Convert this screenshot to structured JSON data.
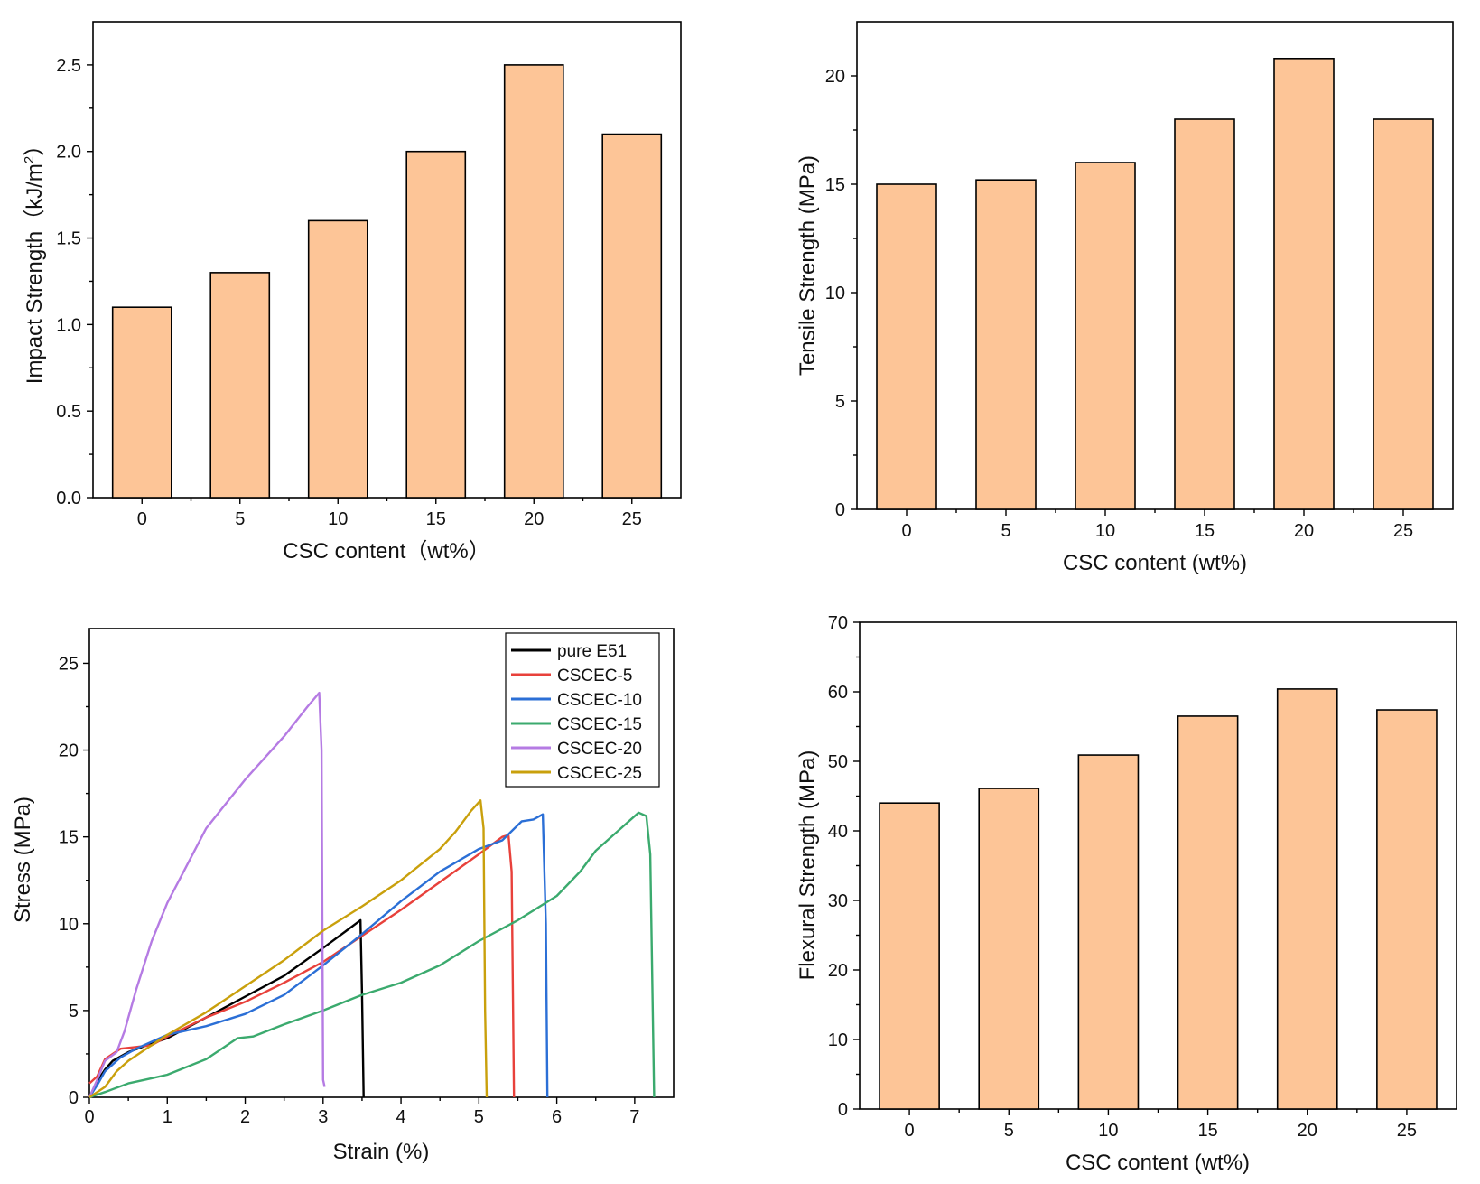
{
  "colors": {
    "bar_fill": "#FDC597"
  },
  "chart_data": [
    {
      "id": "impact",
      "type": "bar",
      "categories": [
        "0",
        "5",
        "10",
        "15",
        "20",
        "25"
      ],
      "values": [
        1.1,
        1.3,
        1.6,
        2.0,
        2.5,
        2.1
      ],
      "xlabel": "CSC content（wt%）",
      "ylabel_main": "Impact Strength（kJ/m",
      "ylabel_sup": "2",
      "ylabel_end": "）",
      "ylim": [
        0,
        2.75
      ],
      "yticks": [
        0.0,
        0.5,
        1.0,
        1.5,
        2.0,
        2.5
      ],
      "ytick_labels": [
        "0.0",
        "0.5",
        "1.0",
        "1.5",
        "2.0",
        "2.5"
      ]
    },
    {
      "id": "tensile",
      "type": "bar",
      "categories": [
        "0",
        "5",
        "10",
        "15",
        "20",
        "25"
      ],
      "values": [
        15.0,
        15.2,
        16.0,
        18.0,
        20.8,
        18.0
      ],
      "xlabel": "CSC content (wt%)",
      "ylabel": "Tensile Strength (MPa)",
      "ylim": [
        0,
        22.5
      ],
      "yticks": [
        0,
        5,
        10,
        15,
        20
      ],
      "ytick_labels": [
        "0",
        "5",
        "10",
        "15",
        "20"
      ]
    },
    {
      "id": "stress_strain",
      "type": "line",
      "xlabel": "Strain (%)",
      "ylabel": "Stress (MPa)",
      "xlim": [
        0,
        7.5
      ],
      "ylim": [
        0,
        27
      ],
      "xticks": [
        0,
        1,
        2,
        3,
        4,
        5,
        6,
        7
      ],
      "xtick_labels": [
        "0",
        "1",
        "2",
        "3",
        "4",
        "5",
        "6",
        "7"
      ],
      "yticks": [
        0,
        5,
        10,
        15,
        20,
        25
      ],
      "ytick_labels": [
        "0",
        "5",
        "10",
        "15",
        "20",
        "25"
      ],
      "legend_position": "top-right",
      "series": [
        {
          "name": "pure E51",
          "color": "#000000",
          "points": [
            [
              0,
              0
            ],
            [
              0.1,
              0.9
            ],
            [
              0.2,
              1.6
            ],
            [
              0.3,
              2.1
            ],
            [
              0.5,
              2.6
            ],
            [
              0.8,
              3.1
            ],
            [
              1.0,
              3.4
            ],
            [
              1.5,
              4.6
            ],
            [
              2.0,
              5.8
            ],
            [
              2.5,
              7.0
            ],
            [
              3.0,
              8.6
            ],
            [
              3.3,
              9.6
            ],
            [
              3.48,
              10.2
            ],
            [
              3.5,
              6.0
            ],
            [
              3.52,
              0
            ]
          ]
        },
        {
          "name": "CSCEC-5",
          "color": "#E8413B",
          "points": [
            [
              0,
              0.8
            ],
            [
              0.1,
              1.2
            ],
            [
              0.2,
              2.2
            ],
            [
              0.4,
              2.8
            ],
            [
              0.6,
              2.9
            ],
            [
              0.8,
              3.0
            ],
            [
              1.0,
              3.5
            ],
            [
              1.5,
              4.6
            ],
            [
              2.0,
              5.5
            ],
            [
              2.5,
              6.6
            ],
            [
              3.0,
              7.8
            ],
            [
              3.5,
              9.3
            ],
            [
              4.0,
              10.8
            ],
            [
              4.5,
              12.4
            ],
            [
              5.0,
              14.0
            ],
            [
              5.3,
              15.0
            ],
            [
              5.38,
              15.1
            ],
            [
              5.42,
              13.0
            ],
            [
              5.45,
              0
            ]
          ]
        },
        {
          "name": "CSCEC-10",
          "color": "#2B6FD6",
          "points": [
            [
              0,
              0
            ],
            [
              0.1,
              0.7
            ],
            [
              0.2,
              1.5
            ],
            [
              0.4,
              2.3
            ],
            [
              0.6,
              2.8
            ],
            [
              0.8,
              3.2
            ],
            [
              1.0,
              3.6
            ],
            [
              1.5,
              4.1
            ],
            [
              2.0,
              4.8
            ],
            [
              2.5,
              5.9
            ],
            [
              3.0,
              7.6
            ],
            [
              3.5,
              9.4
            ],
            [
              4.0,
              11.3
            ],
            [
              4.5,
              13.0
            ],
            [
              5.0,
              14.3
            ],
            [
              5.3,
              14.8
            ],
            [
              5.55,
              15.9
            ],
            [
              5.7,
              16.0
            ],
            [
              5.82,
              16.3
            ],
            [
              5.86,
              10.0
            ],
            [
              5.88,
              0
            ]
          ]
        },
        {
          "name": "CSCEC-15",
          "color": "#3BAA6E",
          "points": [
            [
              0,
              0
            ],
            [
              0.2,
              0.3
            ],
            [
              0.5,
              0.8
            ],
            [
              0.8,
              1.1
            ],
            [
              1.0,
              1.3
            ],
            [
              1.5,
              2.2
            ],
            [
              1.9,
              3.4
            ],
            [
              2.1,
              3.5
            ],
            [
              2.5,
              4.2
            ],
            [
              3.0,
              5.0
            ],
            [
              3.5,
              5.9
            ],
            [
              4.0,
              6.6
            ],
            [
              4.5,
              7.6
            ],
            [
              5.0,
              9.0
            ],
            [
              5.5,
              10.2
            ],
            [
              6.0,
              11.6
            ],
            [
              6.3,
              13.0
            ],
            [
              6.5,
              14.2
            ],
            [
              6.8,
              15.4
            ],
            [
              7.05,
              16.4
            ],
            [
              7.15,
              16.2
            ],
            [
              7.2,
              14.0
            ],
            [
              7.25,
              0
            ]
          ]
        },
        {
          "name": "CSCEC-20",
          "color": "#B57BE3",
          "points": [
            [
              0,
              0
            ],
            [
              0.1,
              1.0
            ],
            [
              0.2,
              2.1
            ],
            [
              0.35,
              2.6
            ],
            [
              0.45,
              3.8
            ],
            [
              0.6,
              6.2
            ],
            [
              0.8,
              9.0
            ],
            [
              1.0,
              11.2
            ],
            [
              1.5,
              15.5
            ],
            [
              2.0,
              18.3
            ],
            [
              2.5,
              20.8
            ],
            [
              2.8,
              22.5
            ],
            [
              2.95,
              23.3
            ],
            [
              2.98,
              20.0
            ],
            [
              3.0,
              1.0
            ],
            [
              3.02,
              0.6
            ]
          ]
        },
        {
          "name": "CSCEC-25",
          "color": "#C9A00C",
          "points": [
            [
              0,
              0
            ],
            [
              0.2,
              0.6
            ],
            [
              0.35,
              1.5
            ],
            [
              0.5,
              2.1
            ],
            [
              0.8,
              3.0
            ],
            [
              1.0,
              3.6
            ],
            [
              1.5,
              4.9
            ],
            [
              2.0,
              6.4
            ],
            [
              2.5,
              7.9
            ],
            [
              3.0,
              9.6
            ],
            [
              3.5,
              11.0
            ],
            [
              4.0,
              12.5
            ],
            [
              4.5,
              14.3
            ],
            [
              4.7,
              15.3
            ],
            [
              4.9,
              16.5
            ],
            [
              5.02,
              17.1
            ],
            [
              5.06,
              15.5
            ],
            [
              5.08,
              5.0
            ],
            [
              5.1,
              0
            ]
          ]
        }
      ]
    },
    {
      "id": "flexural",
      "type": "bar",
      "categories": [
        "0",
        "5",
        "10",
        "15",
        "20",
        "25"
      ],
      "values": [
        44.0,
        46.1,
        50.9,
        56.5,
        60.4,
        57.4
      ],
      "xlabel": "CSC content (wt%)",
      "ylabel": "Flexural Strength (MPa)",
      "ylim": [
        0,
        70
      ],
      "yticks": [
        0,
        10,
        20,
        30,
        40,
        50,
        60,
        70
      ],
      "ytick_labels": [
        "0",
        "10",
        "20",
        "30",
        "40",
        "50",
        "60",
        "70"
      ]
    }
  ]
}
